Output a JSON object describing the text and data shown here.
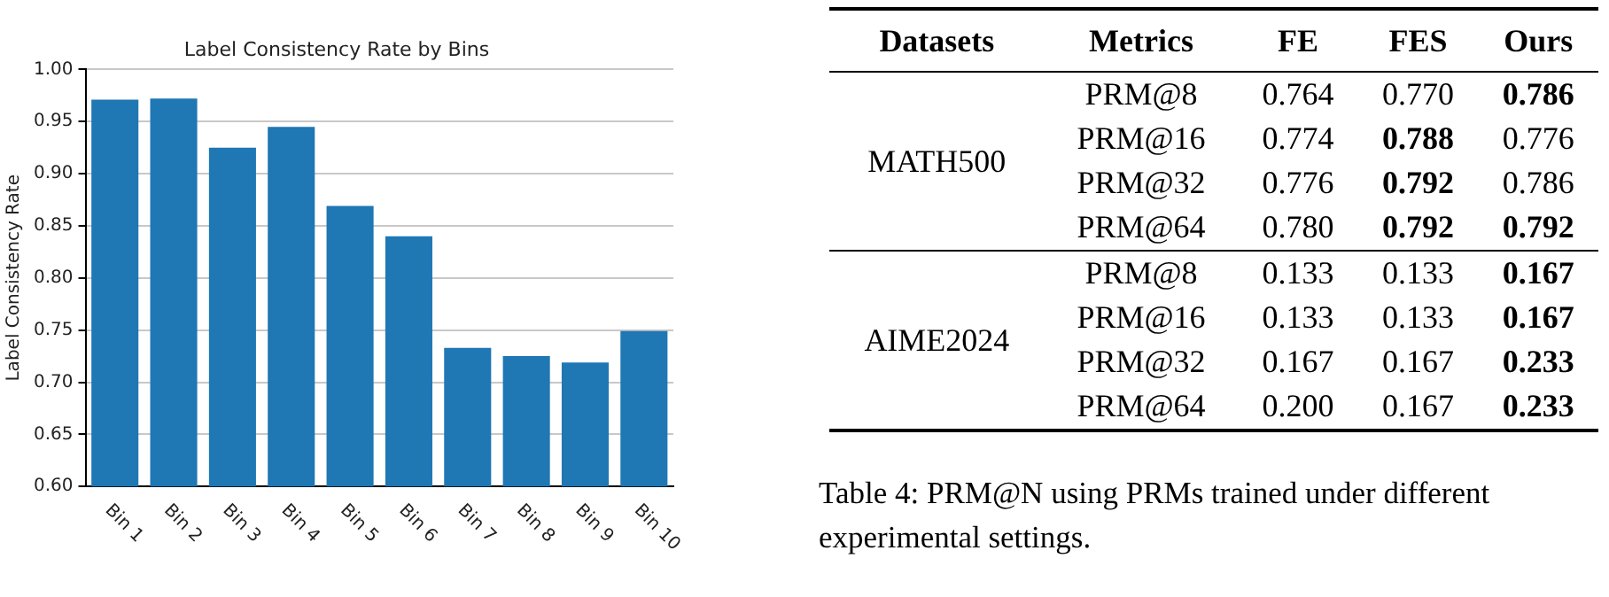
{
  "chart_data": [
    {
      "type": "bar",
      "title": "Label Consistency Rate by Bins",
      "ylabel": "Label Consistency Rate",
      "categories": [
        "Bin 1",
        "Bin 2",
        "Bin 3",
        "Bin 4",
        "Bin 5",
        "Bin 6",
        "Bin 7",
        "Bin 8",
        "Bin 9",
        "Bin 10"
      ],
      "values": [
        0.971,
        0.972,
        0.925,
        0.945,
        0.869,
        0.84,
        0.733,
        0.725,
        0.719,
        0.749
      ],
      "color": "#1f77b4",
      "ylim": [
        0.6,
        1.0
      ],
      "yticks": [
        {
          "value": 0.6,
          "label": "0.60"
        },
        {
          "value": 0.65,
          "label": "0.65"
        },
        {
          "value": 0.7,
          "label": "0.70"
        },
        {
          "value": 0.75,
          "label": "0.75"
        },
        {
          "value": 0.8,
          "label": "0.80"
        },
        {
          "value": 0.85,
          "label": "0.85"
        },
        {
          "value": 0.9,
          "label": "0.90"
        },
        {
          "value": 0.95,
          "label": "0.95"
        },
        {
          "value": 1.0,
          "label": "1.00"
        }
      ],
      "grid": "y",
      "legend": false
    },
    {
      "type": "other",
      "annotations": [
        "Datasets",
        "Metrics",
        "FE",
        "FES",
        "Ours",
        "MATH500",
        "PRM@8",
        "0.764",
        "0.770",
        "0.786",
        "PRM@16",
        "0.774",
        "0.788",
        "0.776",
        "PRM@32",
        "0.776",
        "0.792",
        "0.786",
        "PRM@64",
        "0.780",
        "0.792",
        "0.792",
        "AIME2024",
        "PRM@8",
        "0.133",
        "0.133",
        "0.167",
        "PRM@16",
        "0.133",
        "0.133",
        "0.167",
        "PRM@32",
        "0.167",
        "0.167",
        "0.233",
        "PRM@64",
        "0.200",
        "0.167",
        "0.233",
        "Table 4: PRM@N using PRMs trained under different experimental settings."
      ]
    }
  ]
}
